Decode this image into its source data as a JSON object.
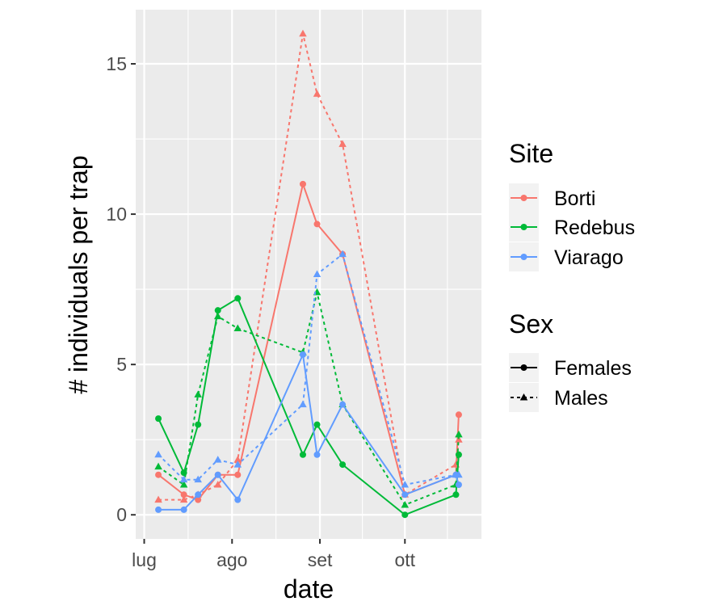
{
  "chart_data": {
    "type": "line",
    "title": "",
    "xlabel": "date",
    "ylabel": "# individuals per trap",
    "ylim": [
      -0.8,
      16.8
    ],
    "xlim": [
      -3,
      119
    ],
    "yticks": [
      0,
      5,
      10,
      15
    ],
    "ytick_labels": [
      "0",
      "5",
      "10",
      "15"
    ],
    "xticks": [
      0,
      31,
      62,
      92
    ],
    "xtick_labels": [
      "lug",
      "ago",
      "set",
      "ott"
    ],
    "x_units": "days since Jul 1",
    "legend": {
      "site_title": "Site",
      "sex_title": "Sex",
      "sites": [
        {
          "name": "Borti",
          "color": "#f8766d"
        },
        {
          "name": "Redebus",
          "color": "#00ba38"
        },
        {
          "name": "Viarago",
          "color": "#619cff"
        }
      ],
      "sexes": [
        {
          "name": "Females",
          "dash": "solid",
          "shape": "circle"
        },
        {
          "name": "Males",
          "dash": "dashed",
          "shape": "triangle"
        }
      ]
    },
    "series": [
      {
        "site": "Borti",
        "sex": "Females",
        "color": "#f8766d",
        "x": [
          5,
          14,
          19,
          26,
          33,
          56,
          61,
          70,
          92,
          110,
          111
        ],
        "y": [
          1.33,
          0.67,
          0.5,
          1.33,
          1.33,
          11,
          9.67,
          8.67,
          0.67,
          1.33,
          3.33
        ]
      },
      {
        "site": "Borti",
        "sex": "Males",
        "color": "#f8766d",
        "x": [
          5,
          14,
          19,
          26,
          33,
          56,
          61,
          70,
          92,
          110,
          111
        ],
        "y": [
          0.5,
          0.5,
          0.67,
          1.0,
          1.83,
          16,
          14,
          12.33,
          0.67,
          1.67,
          2.5
        ]
      },
      {
        "site": "Redebus",
        "sex": "Females",
        "color": "#00ba38",
        "x": [
          5,
          14,
          19,
          26,
          33,
          56,
          61,
          70,
          92,
          110,
          111
        ],
        "y": [
          3.2,
          1.4,
          3.0,
          6.8,
          7.2,
          2.0,
          3.0,
          1.67,
          0,
          0.67,
          2.0
        ]
      },
      {
        "site": "Redebus",
        "sex": "Males",
        "color": "#00ba38",
        "x": [
          5,
          14,
          19,
          26,
          33,
          56,
          61,
          70,
          92,
          110,
          111
        ],
        "y": [
          1.6,
          1.0,
          4.0,
          6.6,
          6.2,
          5.4,
          7.4,
          3.67,
          0.33,
          1.0,
          2.67
        ]
      },
      {
        "site": "Viarago",
        "sex": "Females",
        "color": "#619cff",
        "x": [
          5,
          14,
          19,
          26,
          33,
          56,
          61,
          70,
          92,
          110,
          111
        ],
        "y": [
          0.17,
          0.17,
          0.67,
          1.33,
          0.5,
          5.33,
          2.0,
          3.67,
          0.67,
          1.33,
          1.0
        ]
      },
      {
        "site": "Viarago",
        "sex": "Males",
        "color": "#619cff",
        "x": [
          5,
          14,
          19,
          26,
          33,
          56,
          61,
          70,
          92,
          110,
          111
        ],
        "y": [
          2.0,
          1.17,
          1.17,
          1.83,
          1.67,
          3.67,
          8.0,
          8.67,
          1.0,
          1.33,
          1.33
        ]
      }
    ]
  }
}
